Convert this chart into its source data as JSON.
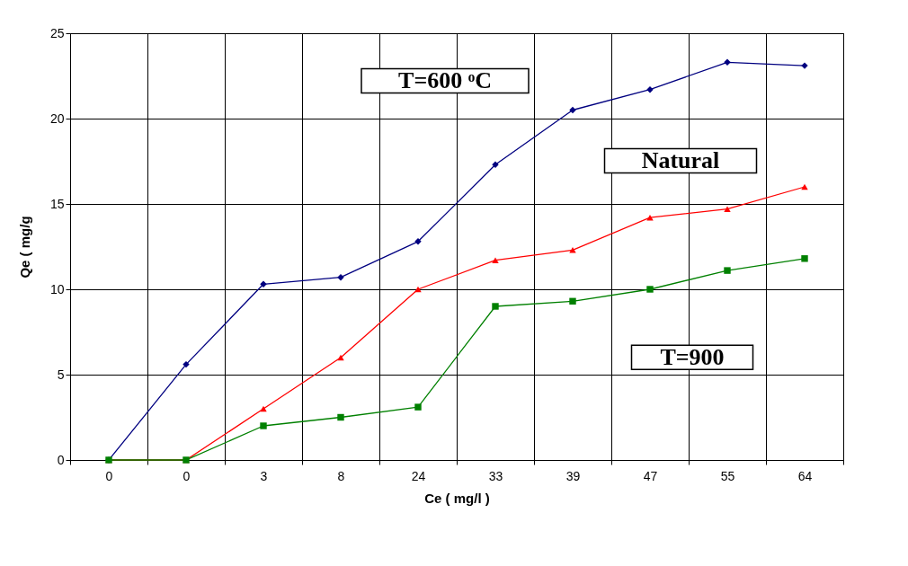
{
  "chart_data": {
    "type": "line",
    "xlabel": "Ce ( mg/l )",
    "ylabel": "Qe ( mg/g",
    "categories": [
      "0",
      "0",
      "3",
      "8",
      "24",
      "33",
      "39",
      "47",
      "55",
      "64"
    ],
    "series": [
      {
        "name": "T=600 ᵒC",
        "color": "#000080",
        "marker": "diamond",
        "values": [
          0,
          5.6,
          10.3,
          10.7,
          12.8,
          17.3,
          20.5,
          21.7,
          23.3,
          23.1
        ]
      },
      {
        "name": "Natural",
        "color": "#ff0000",
        "marker": "triangle",
        "values": [
          0,
          0,
          3.0,
          6.0,
          10.0,
          11.7,
          12.3,
          14.2,
          14.7,
          16.0
        ]
      },
      {
        "name": "T=900",
        "color": "#008000",
        "marker": "square",
        "values": [
          0,
          0,
          2.0,
          2.5,
          3.1,
          9.0,
          9.3,
          10.0,
          11.1,
          11.8
        ]
      }
    ],
    "ylim": [
      0,
      25
    ],
    "yticks": [
      0,
      5,
      10,
      15,
      20,
      25
    ],
    "grid": true,
    "legend": false
  }
}
